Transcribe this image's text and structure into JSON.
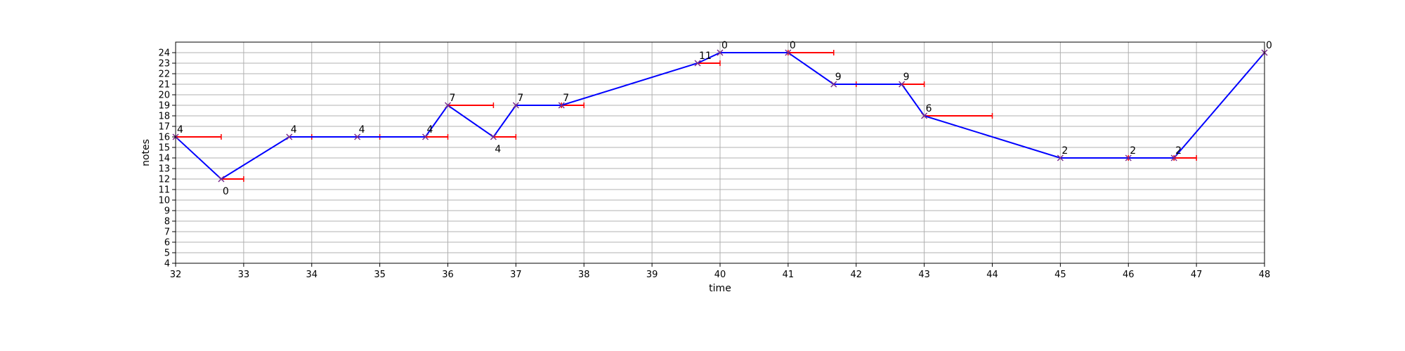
{
  "chart_data": {
    "type": "line",
    "xlabel": "time",
    "ylabel": "notes",
    "xlim": [
      32,
      48
    ],
    "ylim": [
      4,
      25
    ],
    "x_ticks": [
      32,
      33,
      34,
      35,
      36,
      37,
      38,
      39,
      40,
      41,
      42,
      43,
      44,
      45,
      46,
      47,
      48
    ],
    "y_ticks": [
      4,
      5,
      6,
      7,
      8,
      9,
      10,
      11,
      12,
      13,
      14,
      15,
      16,
      17,
      18,
      19,
      20,
      21,
      22,
      23,
      24
    ],
    "grid": true,
    "colors": {
      "line": "#0000ff",
      "duration": "#ff0000",
      "marker": "#7a2a8a"
    },
    "points": [
      {
        "x": 32.0,
        "y": 16,
        "label": "4",
        "duration_end": 32.67
      },
      {
        "x": 32.67,
        "y": 12,
        "label": "0",
        "duration_end": 33.0
      },
      {
        "x": 33.67,
        "y": 16,
        "label": "4",
        "duration_end": 34.0
      },
      {
        "x": 34.67,
        "y": 16,
        "label": "4",
        "duration_end": 35.0
      },
      {
        "x": 35.67,
        "y": 16,
        "label": "4",
        "duration_end": 36.0
      },
      {
        "x": 36.0,
        "y": 19,
        "label": "7",
        "duration_end": 36.67
      },
      {
        "x": 36.67,
        "y": 16,
        "label": "4",
        "duration_end": 37.0
      },
      {
        "x": 37.0,
        "y": 19,
        "label": "7",
        "duration_end": 37.67
      },
      {
        "x": 37.67,
        "y": 19,
        "label": "7",
        "duration_end": 38.0
      },
      {
        "x": 39.67,
        "y": 23,
        "label": "11",
        "duration_end": 40.0
      },
      {
        "x": 40.0,
        "y": 24,
        "label": "0",
        "duration_end": 41.0
      },
      {
        "x": 41.0,
        "y": 24,
        "label": "0",
        "duration_end": 41.67
      },
      {
        "x": 41.67,
        "y": 21,
        "label": "9",
        "duration_end": 42.0
      },
      {
        "x": 42.67,
        "y": 21,
        "label": "9",
        "duration_end": 43.0
      },
      {
        "x": 43.0,
        "y": 18,
        "label": "6",
        "duration_end": 44.0
      },
      {
        "x": 45.0,
        "y": 14,
        "label": "2",
        "duration_end": 46.0
      },
      {
        "x": 46.0,
        "y": 14,
        "label": "2",
        "duration_end": 46.67
      },
      {
        "x": 46.67,
        "y": 14,
        "label": "2",
        "duration_end": 47.0
      },
      {
        "x": 48.0,
        "y": 24,
        "label": "0",
        "duration_end": null
      }
    ]
  }
}
